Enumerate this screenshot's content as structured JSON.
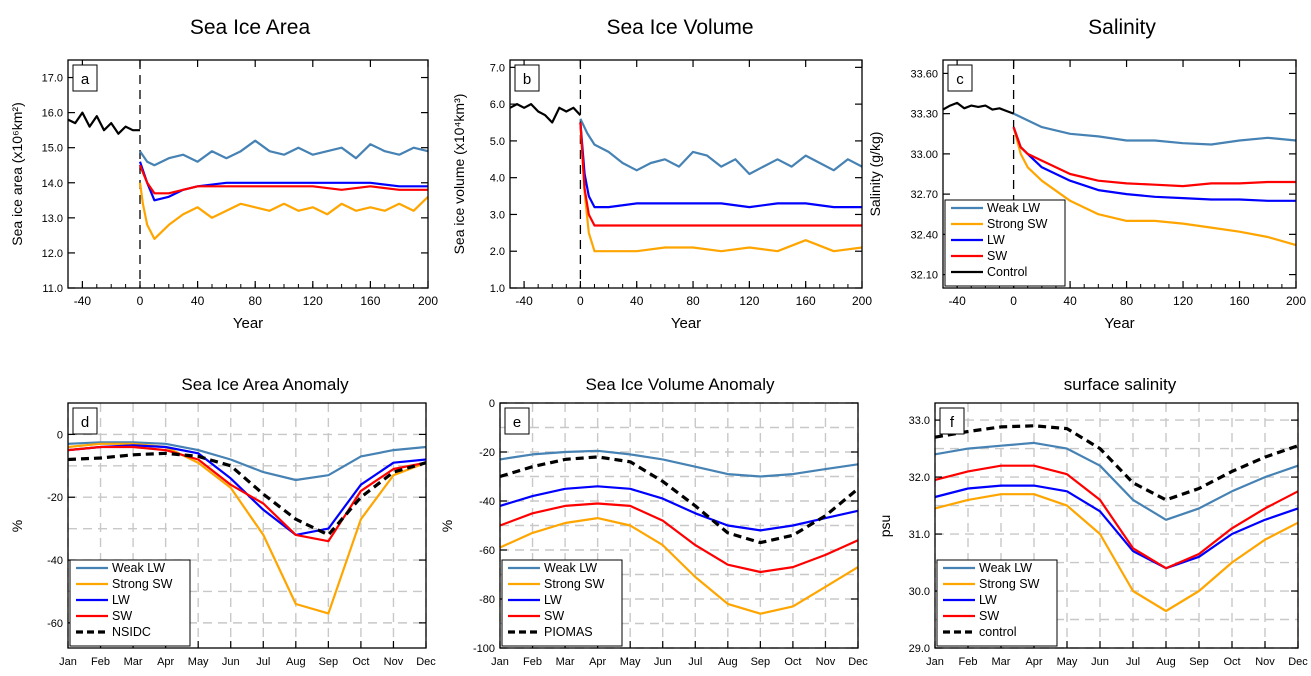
{
  "colors": {
    "weak_lw": "#4682b4",
    "strong_sw": "#ffa500",
    "lw": "#0000ff",
    "sw": "#ff0000",
    "black": "#000000",
    "grid": "#c8c8c8"
  },
  "chart_data": [
    {
      "panel": "a",
      "type": "line",
      "title": "Sea Ice Area",
      "xlabel": "Year",
      "ylabel": "Sea ice area (x10⁶km²)",
      "xlim": [
        -50,
        200
      ],
      "ylim": [
        11.0,
        17.5
      ],
      "xticks": [
        -40,
        0,
        40,
        80,
        120,
        160,
        200
      ],
      "yticks": [
        11.0,
        12.0,
        13.0,
        14.0,
        15.0,
        16.0,
        17.0
      ],
      "ytick_labels": [
        "11.0",
        "12.0",
        "13.0",
        "14.0",
        "15.0",
        "16.0",
        "17.0"
      ],
      "x_break": 0,
      "grid": false,
      "series": [
        {
          "name": "Control",
          "color": "black",
          "x": [
            -50,
            -45,
            -40,
            -35,
            -30,
            -25,
            -20,
            -15,
            -10,
            -5,
            0
          ],
          "y": [
            15.8,
            15.7,
            16.0,
            15.6,
            15.9,
            15.5,
            15.7,
            15.4,
            15.6,
            15.5,
            15.5
          ]
        },
        {
          "name": "Weak LW",
          "color": "weak_lw",
          "x": [
            0,
            5,
            10,
            20,
            30,
            40,
            50,
            60,
            70,
            80,
            90,
            100,
            110,
            120,
            130,
            140,
            150,
            160,
            170,
            180,
            190,
            200
          ],
          "y": [
            14.9,
            14.6,
            14.5,
            14.7,
            14.8,
            14.6,
            14.9,
            14.7,
            14.9,
            15.2,
            14.9,
            14.8,
            15.0,
            14.8,
            14.9,
            15.0,
            14.7,
            15.1,
            14.9,
            14.8,
            15.0,
            14.9
          ]
        },
        {
          "name": "Strong SW",
          "color": "strong_sw",
          "x": [
            0,
            2,
            5,
            10,
            20,
            30,
            40,
            50,
            60,
            70,
            80,
            90,
            100,
            110,
            120,
            130,
            140,
            150,
            160,
            170,
            180,
            190,
            200
          ],
          "y": [
            14.0,
            13.4,
            12.8,
            12.4,
            12.8,
            13.1,
            13.3,
            13.0,
            13.2,
            13.4,
            13.3,
            13.2,
            13.4,
            13.2,
            13.3,
            13.1,
            13.4,
            13.2,
            13.3,
            13.2,
            13.4,
            13.2,
            13.6
          ]
        },
        {
          "name": "LW",
          "color": "lw",
          "x": [
            0,
            5,
            10,
            20,
            30,
            40,
            60,
            80,
            100,
            120,
            140,
            160,
            180,
            200
          ],
          "y": [
            14.6,
            14.0,
            13.5,
            13.6,
            13.8,
            13.9,
            14.0,
            14.0,
            14.0,
            14.0,
            14.0,
            14.0,
            13.9,
            13.9
          ]
        },
        {
          "name": "SW",
          "color": "sw",
          "x": [
            0,
            5,
            10,
            20,
            30,
            40,
            60,
            80,
            100,
            120,
            140,
            160,
            180,
            200
          ],
          "y": [
            14.5,
            14.0,
            13.7,
            13.7,
            13.8,
            13.9,
            13.9,
            13.9,
            13.9,
            13.9,
            13.8,
            13.9,
            13.8,
            13.8
          ]
        }
      ]
    },
    {
      "panel": "b",
      "type": "line",
      "title": "Sea Ice Volume",
      "xlabel": "Year",
      "ylabel": "Sea ice volume (x10⁴km³)",
      "xlim": [
        -50,
        200
      ],
      "ylim": [
        1.0,
        7.2
      ],
      "xticks": [
        -40,
        0,
        40,
        80,
        120,
        160,
        200
      ],
      "yticks": [
        1.0,
        2.0,
        3.0,
        4.0,
        5.0,
        6.0,
        7.0
      ],
      "ytick_labels": [
        "1.0",
        "2.0",
        "3.0",
        "4.0",
        "5.0",
        "6.0",
        "7.0"
      ],
      "x_break": 0,
      "grid": false,
      "series": [
        {
          "name": "Control",
          "color": "black",
          "x": [
            -50,
            -45,
            -40,
            -35,
            -30,
            -25,
            -20,
            -15,
            -10,
            -5,
            0
          ],
          "y": [
            5.9,
            6.0,
            5.9,
            6.0,
            5.8,
            5.7,
            5.5,
            5.9,
            5.8,
            5.9,
            5.7
          ]
        },
        {
          "name": "Weak LW",
          "color": "weak_lw",
          "x": [
            0,
            5,
            10,
            20,
            30,
            40,
            50,
            60,
            70,
            80,
            90,
            100,
            110,
            120,
            130,
            140,
            150,
            160,
            170,
            180,
            190,
            200
          ],
          "y": [
            5.6,
            5.2,
            4.9,
            4.7,
            4.4,
            4.2,
            4.4,
            4.5,
            4.3,
            4.7,
            4.6,
            4.3,
            4.5,
            4.1,
            4.3,
            4.5,
            4.3,
            4.6,
            4.4,
            4.2,
            4.5,
            4.3
          ]
        },
        {
          "name": "Strong SW",
          "color": "strong_sw",
          "x": [
            0,
            3,
            6,
            10,
            20,
            40,
            60,
            80,
            100,
            120,
            140,
            160,
            180,
            200
          ],
          "y": [
            5.5,
            3.6,
            2.5,
            2.0,
            2.0,
            2.0,
            2.1,
            2.1,
            2.0,
            2.1,
            2.0,
            2.3,
            2.0,
            2.1
          ]
        },
        {
          "name": "LW",
          "color": "lw",
          "x": [
            0,
            3,
            6,
            10,
            20,
            40,
            60,
            80,
            100,
            120,
            140,
            160,
            180,
            200
          ],
          "y": [
            5.5,
            4.1,
            3.5,
            3.2,
            3.2,
            3.3,
            3.3,
            3.3,
            3.3,
            3.2,
            3.3,
            3.3,
            3.2,
            3.2
          ]
        },
        {
          "name": "SW",
          "color": "sw",
          "x": [
            0,
            3,
            6,
            10,
            20,
            40,
            60,
            80,
            100,
            120,
            140,
            160,
            180,
            200
          ],
          "y": [
            5.5,
            3.7,
            3.0,
            2.7,
            2.7,
            2.7,
            2.7,
            2.7,
            2.7,
            2.7,
            2.7,
            2.7,
            2.7,
            2.7
          ]
        }
      ]
    },
    {
      "panel": "c",
      "type": "line",
      "title": "Salinity",
      "xlabel": "Year",
      "ylabel": "Salinity (g/kg)",
      "xlim": [
        -50,
        200
      ],
      "ylim": [
        32.0,
        33.7
      ],
      "xticks": [
        -40,
        0,
        40,
        80,
        120,
        160,
        200
      ],
      "yticks": [
        32.1,
        32.4,
        32.7,
        33.0,
        33.3,
        33.6
      ],
      "ytick_labels": [
        "32.10",
        "32.40",
        "32.70",
        "33.00",
        "33.30",
        "33.60"
      ],
      "x_break": 0,
      "grid": false,
      "legend": "bottom-left",
      "series": [
        {
          "name": "Weak LW",
          "color": "weak_lw",
          "x": [
            0,
            10,
            20,
            40,
            60,
            80,
            100,
            120,
            140,
            160,
            180,
            200
          ],
          "y": [
            33.3,
            33.25,
            33.2,
            33.15,
            33.13,
            33.1,
            33.1,
            33.08,
            33.07,
            33.1,
            33.12,
            33.1
          ]
        },
        {
          "name": "Strong SW",
          "color": "strong_sw",
          "x": [
            0,
            5,
            10,
            20,
            40,
            60,
            80,
            100,
            120,
            140,
            160,
            180,
            200
          ],
          "y": [
            33.2,
            33.0,
            32.9,
            32.8,
            32.65,
            32.55,
            32.5,
            32.5,
            32.48,
            32.45,
            32.42,
            32.38,
            32.32
          ]
        },
        {
          "name": "LW",
          "color": "lw",
          "x": [
            0,
            5,
            10,
            20,
            40,
            60,
            80,
            100,
            120,
            140,
            160,
            180,
            200
          ],
          "y": [
            33.2,
            33.05,
            33.0,
            32.9,
            32.8,
            32.73,
            32.7,
            32.68,
            32.67,
            32.66,
            32.66,
            32.65,
            32.65
          ]
        },
        {
          "name": "SW",
          "color": "sw",
          "x": [
            0,
            5,
            10,
            20,
            40,
            60,
            80,
            100,
            120,
            140,
            160,
            180,
            200
          ],
          "y": [
            33.2,
            33.05,
            33.0,
            32.95,
            32.85,
            32.8,
            32.78,
            32.77,
            32.76,
            32.78,
            32.78,
            32.79,
            32.79
          ]
        },
        {
          "name": "Control",
          "color": "black",
          "x": [
            -50,
            -45,
            -40,
            -35,
            -30,
            -25,
            -20,
            -15,
            -10,
            -5,
            0
          ],
          "y": [
            33.33,
            33.36,
            33.38,
            33.34,
            33.36,
            33.35,
            33.36,
            33.33,
            33.34,
            33.32,
            33.3
          ]
        }
      ]
    },
    {
      "panel": "d",
      "type": "line",
      "title": "Sea Ice Area Anomaly",
      "xlabel": "",
      "ylabel": "%",
      "categories": [
        "Jan",
        "Feb",
        "Mar",
        "Apr",
        "May",
        "Jun",
        "Jul",
        "Aug",
        "Sep",
        "Oct",
        "Nov",
        "Dec"
      ],
      "ylim": [
        -68,
        10
      ],
      "yticks": [
        -60,
        -40,
        -20,
        0
      ],
      "ytick_labels": [
        "-60",
        "-40",
        "-20",
        "0"
      ],
      "grid": true,
      "legend": "bottom-left",
      "series": [
        {
          "name": "Weak LW",
          "color": "weak_lw",
          "values": [
            -3,
            -2.5,
            -2.5,
            -3,
            -5,
            -8,
            -12,
            -14.5,
            -13,
            -7,
            -5,
            -4
          ]
        },
        {
          "name": "Strong SW",
          "color": "strong_sw",
          "values": [
            -4,
            -3,
            -3,
            -4,
            -9,
            -17,
            -32,
            -54,
            -57,
            -27,
            -13,
            -9
          ]
        },
        {
          "name": "LW",
          "color": "lw",
          "values": [
            -5,
            -4,
            -3.5,
            -4,
            -6,
            -14,
            -24,
            -32,
            -30,
            -16,
            -9,
            -8
          ]
        },
        {
          "name": "SW",
          "color": "sw",
          "values": [
            -5,
            -4,
            -4,
            -5,
            -8,
            -16,
            -22,
            -32,
            -34,
            -18,
            -11,
            -9
          ]
        },
        {
          "name": "NSIDC",
          "color": "black",
          "dashed": true,
          "values": [
            -8,
            -7.5,
            -6.5,
            -6,
            -7,
            -10,
            -19,
            -27,
            -32,
            -20,
            -12,
            -9
          ]
        }
      ]
    },
    {
      "panel": "e",
      "type": "line",
      "title": "Sea Ice Volume Anomaly",
      "xlabel": "",
      "ylabel": "%",
      "categories": [
        "Jan",
        "Feb",
        "Mar",
        "Apr",
        "May",
        "Jun",
        "Jul",
        "Aug",
        "Sep",
        "Oct",
        "Nov",
        "Dec"
      ],
      "ylim": [
        -100,
        0
      ],
      "yticks": [
        -100,
        -80,
        -60,
        -40,
        -20,
        0
      ],
      "ytick_labels": [
        "-100",
        "-80",
        "-60",
        "-40",
        "-20",
        "0"
      ],
      "grid": true,
      "legend": "bottom-left",
      "series": [
        {
          "name": "Weak LW",
          "color": "weak_lw",
          "values": [
            -23,
            -21,
            -20,
            -19.5,
            -21,
            -23,
            -26,
            -29,
            -30,
            -29,
            -27,
            -25
          ]
        },
        {
          "name": "Strong SW",
          "color": "strong_sw",
          "values": [
            -59,
            -53,
            -49,
            -47,
            -50,
            -58,
            -71,
            -82,
            -86,
            -83,
            -75,
            -67
          ]
        },
        {
          "name": "LW",
          "color": "lw",
          "values": [
            -42,
            -38,
            -35,
            -34,
            -35,
            -39,
            -45,
            -50,
            -52,
            -50,
            -47,
            -44
          ]
        },
        {
          "name": "SW",
          "color": "sw",
          "values": [
            -50,
            -45,
            -42,
            -41,
            -42,
            -48,
            -58,
            -66,
            -69,
            -67,
            -62,
            -56
          ]
        },
        {
          "name": "PIOMAS",
          "color": "black",
          "dashed": true,
          "values": [
            -30,
            -26,
            -23,
            -22,
            -24,
            -32,
            -42,
            -53,
            -57,
            -54,
            -46,
            -35
          ]
        }
      ]
    },
    {
      "panel": "f",
      "type": "line",
      "title": "surface salinity",
      "xlabel": "",
      "ylabel": "psu",
      "categories": [
        "Jan",
        "Feb",
        "Mar",
        "Apr",
        "May",
        "Jun",
        "Jul",
        "Aug",
        "Sep",
        "Oct",
        "Nov",
        "Dec"
      ],
      "ylim": [
        29.0,
        33.3
      ],
      "yticks": [
        29.0,
        30.0,
        31.0,
        32.0,
        33.0
      ],
      "ytick_labels": [
        "29.0",
        "30.0",
        "31.0",
        "32.0",
        "33.0"
      ],
      "grid": true,
      "legend": "bottom-left",
      "series": [
        {
          "name": "Weak LW",
          "color": "weak_lw",
          "values": [
            32.4,
            32.5,
            32.55,
            32.6,
            32.5,
            32.2,
            31.6,
            31.25,
            31.45,
            31.75,
            32.0,
            32.2
          ]
        },
        {
          "name": "Strong SW",
          "color": "strong_sw",
          "values": [
            31.45,
            31.6,
            31.7,
            31.7,
            31.5,
            31.0,
            30.0,
            29.65,
            30.0,
            30.5,
            30.9,
            31.2
          ]
        },
        {
          "name": "LW",
          "color": "lw",
          "values": [
            31.65,
            31.8,
            31.85,
            31.85,
            31.75,
            31.4,
            30.7,
            30.4,
            30.6,
            31.0,
            31.25,
            31.45
          ]
        },
        {
          "name": "SW",
          "color": "sw",
          "values": [
            31.95,
            32.1,
            32.2,
            32.2,
            32.05,
            31.6,
            30.75,
            30.4,
            30.65,
            31.1,
            31.45,
            31.75
          ]
        },
        {
          "name": "control",
          "color": "black",
          "dashed": true,
          "values": [
            32.7,
            32.8,
            32.88,
            32.9,
            32.85,
            32.5,
            31.9,
            31.6,
            31.8,
            32.1,
            32.35,
            32.55
          ]
        }
      ]
    }
  ]
}
